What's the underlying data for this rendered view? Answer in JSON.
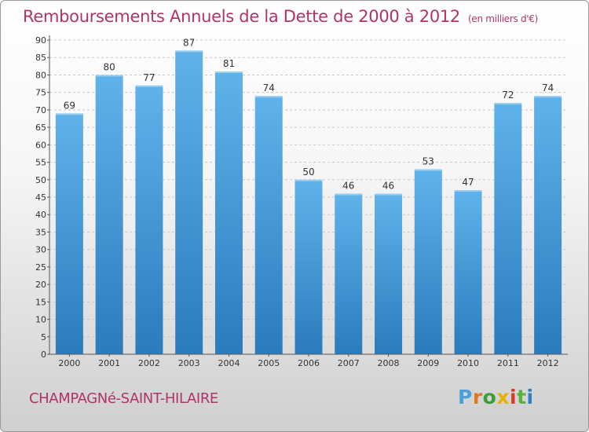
{
  "header": {
    "title": "Remboursements Annuels de la Dette de 2000 à 2012",
    "subtitle": "(en milliers d'€)"
  },
  "footer": {
    "place": "CHAMPAGNé-SAINT-HILAIRE",
    "logo": [
      "P",
      "r",
      "o",
      "x",
      "i",
      "t",
      "i"
    ]
  },
  "colors": {
    "title": "#b0336a",
    "bar_light": "#5aaee6",
    "bar_dark": "#2f80c2",
    "grid": "#c8c8c8"
  },
  "chart_data": {
    "type": "bar",
    "title": "Remboursements Annuels de la Dette de 2000 à 2012",
    "subtitle": "(en milliers d'€)",
    "categories": [
      "2000",
      "2001",
      "2002",
      "2003",
      "2004",
      "2005",
      "2006",
      "2007",
      "2008",
      "2009",
      "2010",
      "2011",
      "2012"
    ],
    "values": [
      69,
      80,
      77,
      87,
      81,
      74,
      50,
      46,
      46,
      53,
      47,
      72,
      74
    ],
    "ylim": [
      0,
      90
    ],
    "yticks": [
      0,
      5,
      10,
      15,
      20,
      25,
      30,
      35,
      40,
      45,
      50,
      55,
      60,
      65,
      70,
      75,
      80,
      85,
      90
    ],
    "grid": "horizontal dashed",
    "legend": "none",
    "data_labels": true
  }
}
